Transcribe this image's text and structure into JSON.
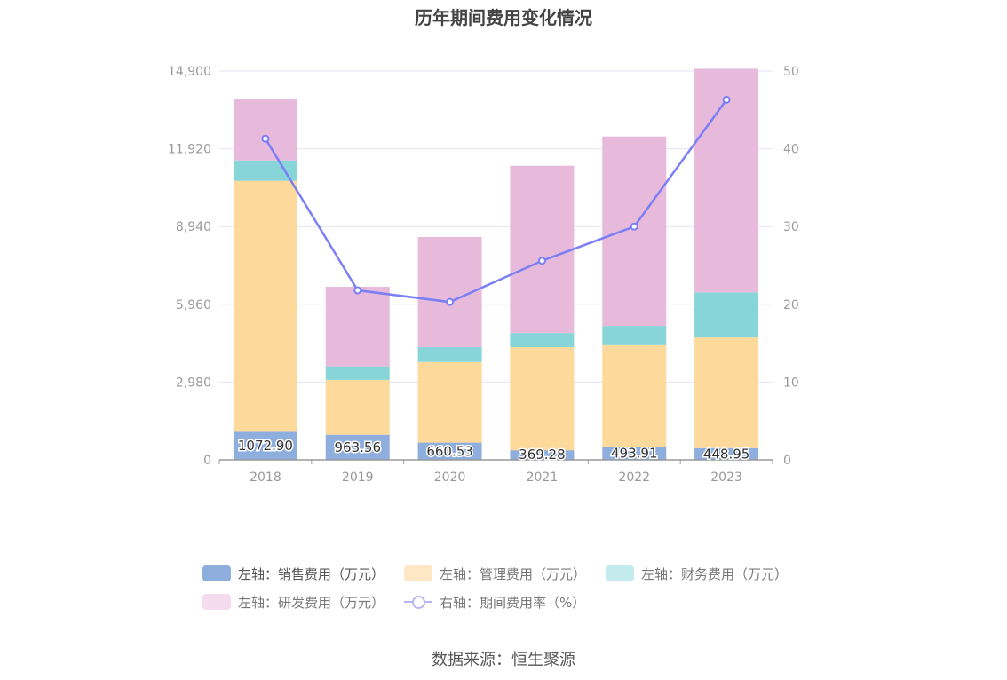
{
  "chart_data": {
    "type": "bar",
    "title": "历年期间费用变化情况",
    "categories": [
      "2018",
      "2019",
      "2020",
      "2021",
      "2022",
      "2023"
    ],
    "left_axis": {
      "ylim": [
        0,
        14900
      ],
      "ticks": [
        "0",
        "2,980",
        "5,960",
        "8,940",
        "11,920",
        "14,900"
      ]
    },
    "right_axis": {
      "ylim": [
        0,
        50
      ],
      "ticks": [
        "0",
        "10",
        "20",
        "30",
        "40",
        "50"
      ]
    },
    "series": [
      {
        "name": "左轴：销售费用（万元）",
        "axis": "left",
        "kind": "bar",
        "color": "#8eaedd",
        "values": [
          1072.9,
          963.56,
          660.53,
          369.28,
          493.91,
          448.95
        ],
        "labels": [
          "1072.90",
          "963.56",
          "660.53",
          "369.28",
          "493.91",
          "448.95"
        ]
      },
      {
        "name": "左轴：管理费用（万元）",
        "axis": "left",
        "kind": "bar",
        "color": "#fed99c",
        "values": [
          9620,
          2100,
          3090,
          3950,
          3900,
          4240
        ]
      },
      {
        "name": "左轴：财务费用（万元）",
        "axis": "left",
        "kind": "bar",
        "color": "#87d5d9",
        "values": [
          780,
          520,
          570,
          540,
          740,
          1730
        ]
      },
      {
        "name": "左轴：研发费用（万元）",
        "axis": "left",
        "kind": "bar",
        "color": "#e7b9db",
        "values": [
          2350,
          3050,
          4220,
          6410,
          7260,
          8570
        ]
      },
      {
        "name": "右轴：期间费用率（%）",
        "axis": "right",
        "kind": "line",
        "color": "#7b7ff5",
        "values": [
          41.3,
          21.8,
          20.3,
          25.6,
          30.0,
          46.3
        ]
      }
    ],
    "legend_position": "bottom",
    "grid": true
  },
  "source": "数据来源：恒生聚源"
}
